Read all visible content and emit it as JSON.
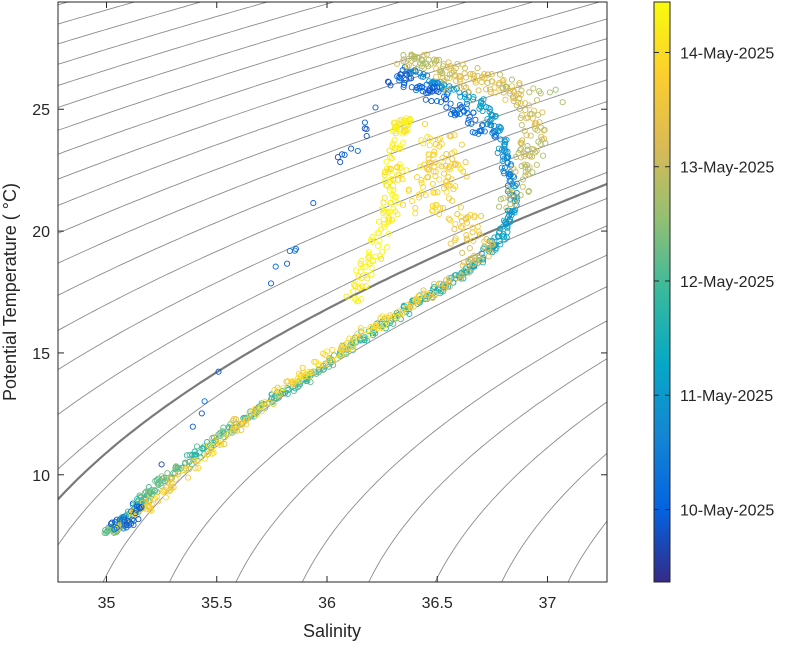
{
  "chart_data": {
    "type": "scatter",
    "xlabel": "Salinity",
    "ylabel": "Potential Temperature ( °C)",
    "xlim": [
      34.78,
      37.27
    ],
    "ylim": [
      5.6,
      29.4
    ],
    "x_ticks": [
      35,
      35.5,
      36,
      36.5,
      37
    ],
    "x_tick_labels": [
      "35",
      "35.5",
      "36",
      "36.5",
      "37"
    ],
    "y_ticks": [
      10,
      15,
      20,
      25
    ],
    "y_tick_labels": [
      "10",
      "15",
      "20",
      "25"
    ],
    "grid": false,
    "background_contours": "density isopycnals (thin gray), one highlighted thicker isopycnal",
    "point_style": "open circles",
    "colorbar": {
      "label_dates": [
        "10-May-2025",
        "11-May-2025",
        "12-May-2025",
        "13-May-2025",
        "14-May-2025"
      ],
      "label_values": [
        0.125,
        0.322,
        0.519,
        0.716,
        0.913
      ],
      "colormap": "parula",
      "colors": [
        "#352a87",
        "#0363e1",
        "#1485d4",
        "#06a7c6",
        "#38b99e",
        "#92bf73",
        "#d9ba56",
        "#fcce2e",
        "#f9fb0e"
      ]
    },
    "series": [
      {
        "segments": [
          {
            "points": [
              [
                35.0,
                7.6,
                0.55
              ],
              [
                35.05,
                7.9,
                0.6
              ],
              [
                35.1,
                8.3,
                0.45
              ],
              [
                35.15,
                8.8,
                0.5
              ],
              [
                35.2,
                9.3,
                0.55
              ],
              [
                35.3,
                10.0,
                0.6
              ],
              [
                35.4,
                10.8,
                0.5
              ],
              [
                35.55,
                11.8,
                0.55
              ],
              [
                35.7,
                12.8,
                0.5
              ],
              [
                35.85,
                13.6,
                0.5
              ],
              [
                36.0,
                14.5,
                0.55
              ],
              [
                36.15,
                15.6,
                0.5
              ],
              [
                36.3,
                16.4,
                0.5
              ],
              [
                36.45,
                17.3,
                0.45
              ],
              [
                36.6,
                18.1,
                0.45
              ],
              [
                36.7,
                18.9,
                0.4
              ],
              [
                36.8,
                19.9,
                0.35
              ],
              [
                36.85,
                21.2,
                0.3
              ],
              [
                36.82,
                22.6,
                0.25
              ],
              [
                36.78,
                24.0,
                0.3
              ],
              [
                36.7,
                25.3,
                0.35
              ],
              [
                36.5,
                26.0,
                0.3
              ],
              [
                36.35,
                26.6,
                0.2
              ]
            ],
            "spread": 0.025
          },
          {
            "points": [
              [
                35.05,
                7.8,
                0.88
              ],
              [
                35.2,
                8.8,
                0.85
              ],
              [
                35.4,
                10.4,
                0.88
              ],
              [
                35.6,
                12.1,
                0.85
              ],
              [
                35.8,
                13.5,
                0.88
              ],
              [
                36.0,
                14.8,
                0.9
              ],
              [
                36.2,
                16.0,
                0.9
              ],
              [
                36.4,
                17.1,
                0.85
              ],
              [
                36.6,
                18.2,
                0.75
              ],
              [
                36.75,
                19.5,
                0.7
              ]
            ],
            "spread": 0.03
          },
          {
            "points": [
              [
                36.12,
                17.2,
                0.97
              ],
              [
                36.2,
                18.8,
                0.97
              ],
              [
                36.28,
                20.6,
                0.97
              ],
              [
                36.3,
                22.4,
                0.97
              ],
              [
                36.33,
                24.2,
                0.97
              ],
              [
                36.35,
                24.5,
                0.95
              ]
            ],
            "spread": 0.04
          },
          {
            "points": [
              [
                36.35,
                22.5,
                0.92
              ],
              [
                36.45,
                21.0,
                0.9
              ],
              [
                36.55,
                22.5,
                0.85
              ],
              [
                36.5,
                24.0,
                0.9
              ],
              [
                36.6,
                20.5,
                0.85
              ],
              [
                36.65,
                19.5,
                0.8
              ]
            ],
            "spread": 0.09
          },
          {
            "points": [
              [
                36.55,
                26.0,
                0.8
              ],
              [
                36.75,
                26.2,
                0.78
              ],
              [
                36.9,
                25.2,
                0.75
              ],
              [
                36.95,
                24.0,
                0.72
              ],
              [
                36.9,
                22.8,
                0.7
              ],
              [
                36.82,
                21.0,
                0.7
              ]
            ],
            "spread": 0.06
          },
          {
            "points": [
              [
                36.35,
                27.1,
                0.72
              ],
              [
                36.45,
                26.9,
                0.7
              ],
              [
                36.6,
                26.5,
                0.75
              ],
              [
                37.05,
                25.5,
                0.68
              ]
            ],
            "spread": 0.05
          },
          {
            "points": [
              [
                35.05,
                7.9,
                0.15
              ],
              [
                35.15,
                8.6,
                0.12
              ],
              [
                36.3,
                26.3,
                0.1
              ],
              [
                36.45,
                25.8,
                0.12
              ],
              [
                36.6,
                25.0,
                0.15
              ],
              [
                36.75,
                23.8,
                0.2
              ]
            ],
            "spread": 0.04
          }
        ]
      }
    ]
  }
}
